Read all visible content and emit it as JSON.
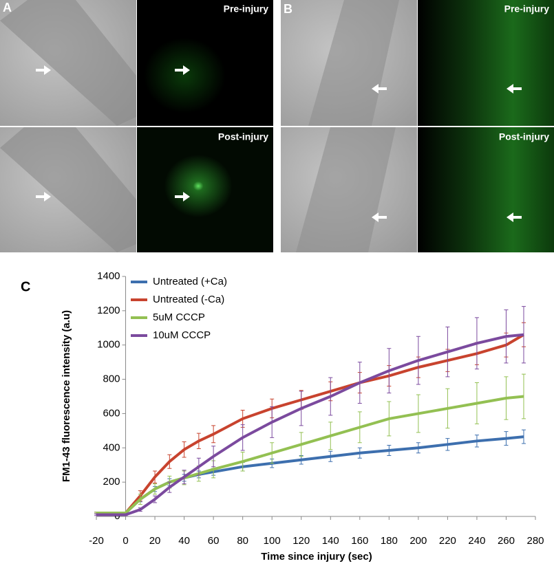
{
  "panels": [
    {
      "label": "A",
      "captions": [
        "Pre-injury",
        "Post-injury"
      ]
    },
    {
      "label": "B",
      "captions": [
        "Pre-injury",
        "Post-injury"
      ]
    }
  ],
  "chart_data": {
    "type": "line",
    "label": "C",
    "xlabel": "Time since injury (sec)",
    "ylabel": "FM1-43 fluorescence intensity (a.u)",
    "x": [
      -20,
      -10,
      0,
      10,
      20,
      30,
      40,
      50,
      60,
      80,
      100,
      120,
      140,
      160,
      180,
      200,
      220,
      240,
      260,
      272
    ],
    "xlim": [
      -20,
      280
    ],
    "xticks": [
      -20,
      0,
      20,
      40,
      60,
      80,
      100,
      120,
      140,
      160,
      180,
      200,
      220,
      240,
      260,
      280
    ],
    "ylim": [
      0,
      1400
    ],
    "yticks": [
      0,
      200,
      400,
      600,
      800,
      1000,
      1200,
      1400
    ],
    "legend": "upper left",
    "grid": false,
    "series": [
      {
        "name": "Untreated (+Ca)",
        "color": "#3d6fae",
        "values": [
          20,
          20,
          20,
          100,
          160,
          200,
          225,
          245,
          260,
          290,
          310,
          330,
          350,
          370,
          385,
          400,
          420,
          440,
          455,
          465
        ],
        "errors": [
          5,
          5,
          5,
          15,
          15,
          20,
          20,
          20,
          20,
          25,
          25,
          25,
          30,
          30,
          30,
          30,
          35,
          35,
          40,
          40
        ]
      },
      {
        "name": "Untreated (-Ca)",
        "color": "#c8432e",
        "values": [
          20,
          20,
          20,
          120,
          230,
          320,
          390,
          440,
          480,
          570,
          630,
          680,
          730,
          780,
          820,
          870,
          910,
          950,
          1000,
          1060
        ],
        "errors": [
          5,
          5,
          5,
          30,
          35,
          40,
          45,
          45,
          50,
          50,
          55,
          55,
          55,
          60,
          60,
          60,
          65,
          65,
          70,
          70
        ]
      },
      {
        "name": "5uM CCCP",
        "color": "#93c052",
        "values": [
          20,
          20,
          20,
          100,
          160,
          200,
          225,
          250,
          275,
          320,
          370,
          420,
          470,
          520,
          570,
          600,
          630,
          660,
          690,
          700
        ],
        "errors": [
          5,
          5,
          5,
          30,
          30,
          35,
          40,
          45,
          50,
          55,
          60,
          70,
          80,
          90,
          100,
          110,
          115,
          120,
          125,
          130
        ]
      },
      {
        "name": "10uM CCCP",
        "color": "#7b4a9e",
        "values": [
          10,
          10,
          10,
          40,
          100,
          170,
          230,
          290,
          350,
          460,
          550,
          630,
          700,
          780,
          850,
          910,
          960,
          1010,
          1050,
          1060
        ],
        "errors": [
          5,
          5,
          5,
          10,
          20,
          30,
          40,
          50,
          60,
          75,
          90,
          100,
          110,
          120,
          130,
          140,
          145,
          150,
          155,
          165
        ]
      }
    ]
  }
}
